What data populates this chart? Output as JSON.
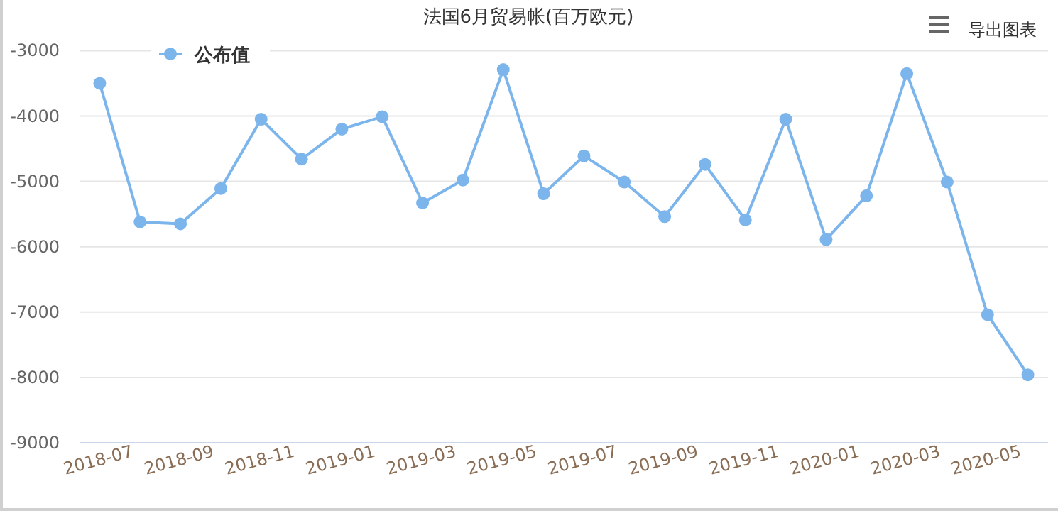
{
  "chart_data": {
    "type": "line",
    "title": "法国6月贸易帐(百万欧元)",
    "categories": [
      "2018-07",
      null,
      "2018-09",
      null,
      "2018-11",
      null,
      "2019-01",
      null,
      "2019-03",
      null,
      "2019-05",
      null,
      "2019-07",
      null,
      "2019-09",
      null,
      "2019-11",
      null,
      "2020-01",
      null,
      "2020-03",
      null,
      "2020-05",
      null
    ],
    "series": [
      {
        "name": "公布值",
        "color": "#7cb5ec",
        "values": [
          -3500,
          -5620,
          -5650,
          -5110,
          -4050,
          -4660,
          -4200,
          -4010,
          -5330,
          -4980,
          -3290,
          -5190,
          -4610,
          -5010,
          -5540,
          -4740,
          -5590,
          -4050,
          -5890,
          -5220,
          -3350,
          -5010,
          -7040,
          -7960
        ]
      }
    ],
    "ylim": [
      -9000,
      -3000
    ],
    "yticks": [
      -9000,
      -8000,
      -7000,
      -6000,
      -5000,
      -4000,
      -3000
    ],
    "grid": "y",
    "legend": "top left",
    "marker": "circle",
    "line_style": "solid",
    "annotations": [
      "导出图表"
    ]
  }
}
